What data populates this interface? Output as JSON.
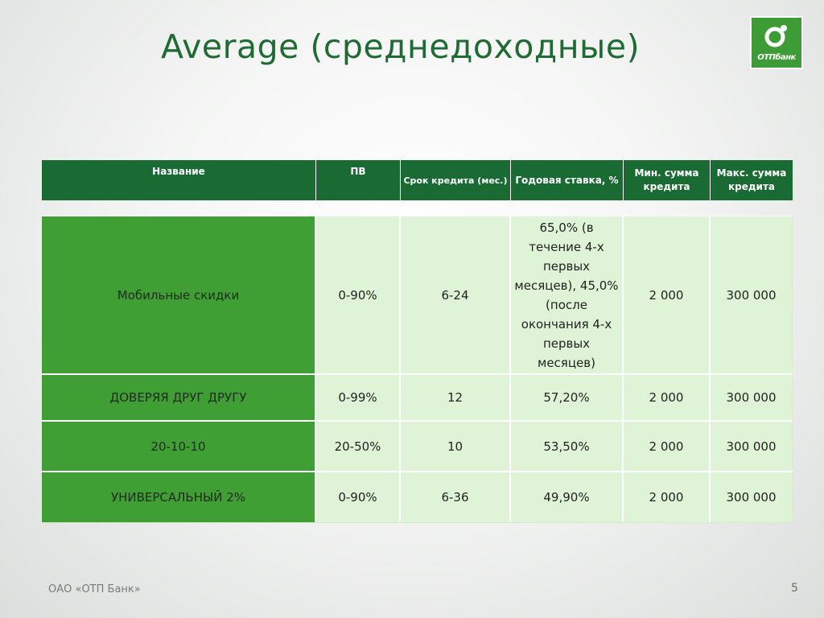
{
  "slide": {
    "title": "Average (среднедоходные)",
    "logo_text": "ОТПбанк",
    "footer": "ОАО «ОТП Банк»",
    "page_number": "5"
  },
  "table": {
    "headers": [
      "Название",
      "ПВ",
      "Срок кредита (мес.)",
      "Годовая ставка, %",
      "Мин. сумма кредита",
      "Макс. сумма кредита"
    ],
    "rows": [
      {
        "name": "Мобильные скидки",
        "pv": "0-90%",
        "term": "6-24",
        "rate": "65,0% (в течение 4-х первых месяцев), 45,0% (после окончания 4-х первых месяцев)",
        "min": "2 000",
        "max": "300 000"
      },
      {
        "name": "ДОВЕРЯЯ ДРУГ ДРУГУ",
        "pv": "0-99%",
        "term": "12",
        "rate": "57,20%",
        "min": "2 000",
        "max": "300 000"
      },
      {
        "name": "20-10-10",
        "pv": "20-50%",
        "term": "10",
        "rate": "53,50%",
        "min": "2 000",
        "max": "300 000"
      },
      {
        "name": "УНИВЕРСАЛЬНЫЙ 2%",
        "pv": "0-90%",
        "term": "6-36",
        "rate": "49,90%",
        "min": "2 000",
        "max": "300 000"
      }
    ]
  },
  "colors": {
    "title": "#1f6b34",
    "header_bg": "#1a6a33",
    "name_col_bg": "#3f9f34",
    "cell_bg": "#dff3d6",
    "logo_bg": "#3d9c35"
  }
}
